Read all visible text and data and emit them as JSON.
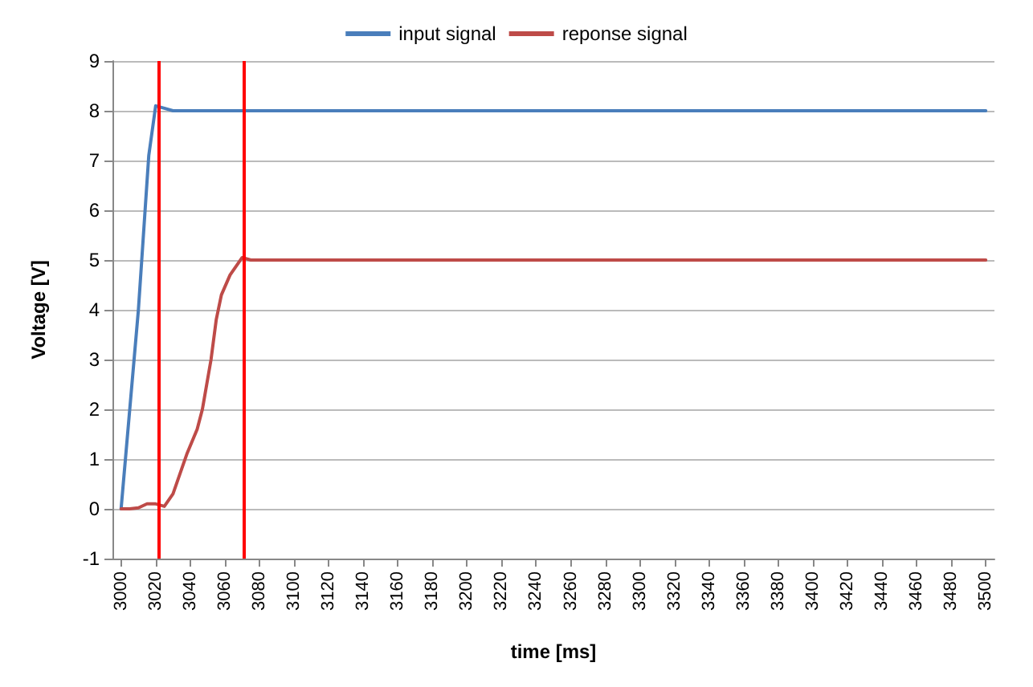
{
  "chart_data": {
    "type": "line",
    "xlabel": "time [ms]",
    "ylabel": "Voltage [V]",
    "xlim": [
      2995,
      3505
    ],
    "xticks": [
      3000,
      3020,
      3040,
      3060,
      3080,
      3100,
      3120,
      3140,
      3160,
      3180,
      3200,
      3220,
      3240,
      3260,
      3280,
      3300,
      3320,
      3340,
      3360,
      3380,
      3400,
      3420,
      3440,
      3460,
      3480,
      3500
    ],
    "ylim": [
      -1,
      9
    ],
    "yticks": [
      -1,
      0,
      1,
      2,
      3,
      4,
      5,
      6,
      7,
      8,
      9
    ],
    "grid": "y",
    "legend": "top",
    "marker": "none",
    "line_style": "solid",
    "series": [
      {
        "name": "input signal",
        "color": "#4a7ebb",
        "x": [
          3000,
          3010,
          3016,
          3020,
          3025,
          3030,
          3500
        ],
        "values": [
          0,
          4,
          7.1,
          8.1,
          8.05,
          8,
          8
        ]
      },
      {
        "name": "reponse signal",
        "color": "#be4b48",
        "x": [
          3000,
          3005,
          3010,
          3015,
          3020,
          3025,
          3030,
          3035,
          3038,
          3044,
          3047,
          3052,
          3055,
          3058,
          3063,
          3070,
          3075,
          3500
        ],
        "values": [
          0,
          0,
          0.02,
          0.1,
          0.1,
          0.05,
          0.3,
          0.8,
          1.1,
          1.6,
          2,
          3,
          3.8,
          4.3,
          4.7,
          5.05,
          5,
          5
        ]
      }
    ],
    "ref_lines": [
      {
        "axis": "x",
        "value": 3021.5,
        "color": "#ff0000"
      },
      {
        "axis": "x",
        "value": 3071,
        "color": "#ff0000"
      }
    ]
  }
}
